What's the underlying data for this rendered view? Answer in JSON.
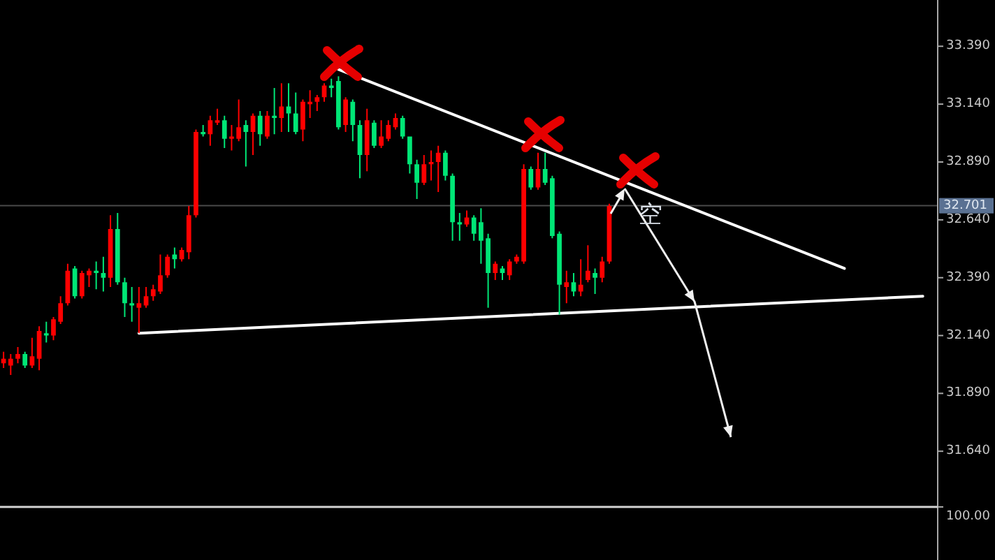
{
  "chart_data": [
    {
      "type": "candlestick",
      "categories": [
        null,
        null,
        null,
        null,
        null,
        null,
        null,
        null,
        null,
        null,
        null,
        null,
        null,
        null,
        null,
        null,
        null,
        null,
        null,
        null,
        null,
        null,
        null,
        null,
        null,
        null,
        null,
        null,
        null,
        null,
        null,
        null,
        null,
        null,
        null,
        null,
        null,
        null,
        null,
        null,
        null,
        null,
        null,
        null,
        null,
        null,
        null,
        null,
        null,
        null,
        null,
        null,
        null,
        null,
        null,
        null,
        null,
        null,
        null,
        null,
        null,
        null,
        null,
        null,
        null,
        null,
        null,
        null,
        null,
        null,
        null,
        null,
        null,
        null,
        null,
        null,
        null,
        null,
        null,
        null,
        null,
        null,
        null,
        null,
        null,
        null,
        null,
        null,
        null,
        null,
        null,
        null,
        null,
        null,
        null,
        null,
        null,
        null,
        null,
        null,
        null,
        null,
        null,
        null,
        null,
        null,
        null,
        null,
        null,
        null,
        null,
        null,
        null,
        null,
        null,
        null,
        null,
        null,
        null,
        null,
        null,
        null,
        null,
        null,
        null,
        null,
        null,
        null,
        null,
        null,
        null
      ],
      "ohlc": [
        [
          32.02,
          32.07,
          32.0,
          32.04
        ],
        [
          32.01,
          32.06,
          31.97,
          32.04
        ],
        [
          32.04,
          32.09,
          32.02,
          32.06
        ],
        [
          32.06,
          32.07,
          32.0,
          32.01
        ],
        [
          32.01,
          32.13,
          32.0,
          32.05
        ],
        [
          32.04,
          32.18,
          31.99,
          32.16
        ],
        [
          32.15,
          32.2,
          32.11,
          32.14
        ],
        [
          32.14,
          32.22,
          32.12,
          32.21
        ],
        [
          32.2,
          32.31,
          32.19,
          32.28
        ],
        [
          32.28,
          32.45,
          32.27,
          32.42
        ],
        [
          32.43,
          32.44,
          32.3,
          32.31
        ],
        [
          32.31,
          32.42,
          32.3,
          32.41
        ],
        [
          32.4,
          32.43,
          32.35,
          32.42
        ],
        [
          32.42,
          32.46,
          32.34,
          32.41
        ],
        [
          32.41,
          32.48,
          32.33,
          32.39
        ],
        [
          32.39,
          32.66,
          32.35,
          32.6
        ],
        [
          32.6,
          32.67,
          32.36,
          32.37
        ],
        [
          32.37,
          32.39,
          32.22,
          32.28
        ],
        [
          32.28,
          32.35,
          32.2,
          32.27
        ],
        [
          32.26,
          32.35,
          32.15,
          32.28
        ],
        [
          32.27,
          32.35,
          32.26,
          32.31
        ],
        [
          32.31,
          32.36,
          32.29,
          32.34
        ],
        [
          32.33,
          32.49,
          32.32,
          32.4
        ],
        [
          32.4,
          32.49,
          32.39,
          32.48
        ],
        [
          32.49,
          32.52,
          32.43,
          32.47
        ],
        [
          32.47,
          32.52,
          32.46,
          32.51
        ],
        [
          32.5,
          32.7,
          32.47,
          32.66
        ],
        [
          32.66,
          33.03,
          32.65,
          33.02
        ],
        [
          33.02,
          33.05,
          33.0,
          33.01
        ],
        [
          33.01,
          33.09,
          32.96,
          33.07
        ],
        [
          33.06,
          33.12,
          33.05,
          33.07
        ],
        [
          33.07,
          33.09,
          32.95,
          32.99
        ],
        [
          32.99,
          33.05,
          32.94,
          33.0
        ],
        [
          32.99,
          33.16,
          32.98,
          33.04
        ],
        [
          33.05,
          33.07,
          32.87,
          33.02
        ],
        [
          33.02,
          33.1,
          32.92,
          33.09
        ],
        [
          33.09,
          33.11,
          32.96,
          33.01
        ],
        [
          33.0,
          33.11,
          32.99,
          33.09
        ],
        [
          33.09,
          33.21,
          33.01,
          33.08
        ],
        [
          33.08,
          33.23,
          33.02,
          33.13
        ],
        [
          33.13,
          33.23,
          33.02,
          33.1
        ],
        [
          33.1,
          33.19,
          33.01,
          33.02
        ],
        [
          33.03,
          33.16,
          32.98,
          33.15
        ],
        [
          33.14,
          33.2,
          33.08,
          33.15
        ],
        [
          33.15,
          33.18,
          33.11,
          33.17
        ],
        [
          33.17,
          33.23,
          33.15,
          33.22
        ],
        [
          33.22,
          33.25,
          33.17,
          33.21
        ],
        [
          33.24,
          33.26,
          33.03,
          33.04
        ],
        [
          33.05,
          33.17,
          33.02,
          33.16
        ],
        [
          33.15,
          33.16,
          32.98,
          33.05
        ],
        [
          33.05,
          33.07,
          32.82,
          32.92
        ],
        [
          32.92,
          33.12,
          32.85,
          33.07
        ],
        [
          33.06,
          33.07,
          32.95,
          32.96
        ],
        [
          32.96,
          33.07,
          32.95,
          33.0
        ],
        [
          32.99,
          33.07,
          32.98,
          33.05
        ],
        [
          33.04,
          33.1,
          33.03,
          33.08
        ],
        [
          33.08,
          33.09,
          32.99,
          33.0
        ],
        [
          33.0,
          33.0,
          32.84,
          32.88
        ],
        [
          32.88,
          32.9,
          32.73,
          32.8
        ],
        [
          32.8,
          32.92,
          32.79,
          32.88
        ],
        [
          32.88,
          32.94,
          32.81,
          32.89
        ],
        [
          32.89,
          32.96,
          32.76,
          32.93
        ],
        [
          32.93,
          32.94,
          32.81,
          32.83
        ],
        [
          32.83,
          32.84,
          32.55,
          32.63
        ],
        [
          32.63,
          32.67,
          32.55,
          32.62
        ],
        [
          32.62,
          32.68,
          32.61,
          32.65
        ],
        [
          32.65,
          32.66,
          32.55,
          32.58
        ],
        [
          32.63,
          32.69,
          32.45,
          32.55
        ],
        [
          32.56,
          32.58,
          32.26,
          32.41
        ],
        [
          32.41,
          32.46,
          32.38,
          32.45
        ],
        [
          32.43,
          32.44,
          32.38,
          32.41
        ],
        [
          32.4,
          32.47,
          32.38,
          32.46
        ],
        [
          32.46,
          32.49,
          32.45,
          32.48
        ],
        [
          32.46,
          32.88,
          32.45,
          32.86
        ],
        [
          32.86,
          32.87,
          32.77,
          32.78
        ],
        [
          32.78,
          32.93,
          32.77,
          32.86
        ],
        [
          32.86,
          32.93,
          32.79,
          32.8
        ],
        [
          32.82,
          32.83,
          32.56,
          32.57
        ],
        [
          32.58,
          32.59,
          32.23,
          32.36
        ],
        [
          32.35,
          32.42,
          32.28,
          32.37
        ],
        [
          32.37,
          32.41,
          32.31,
          32.33
        ],
        [
          32.33,
          32.47,
          32.31,
          32.36
        ],
        [
          32.38,
          32.53,
          32.37,
          32.42
        ],
        [
          32.41,
          32.43,
          32.32,
          32.39
        ],
        [
          32.39,
          32.48,
          32.37,
          32.46
        ],
        [
          32.46,
          32.71,
          32.45,
          32.7
        ],
        null,
        null,
        null,
        null,
        null,
        null,
        null,
        null,
        null,
        null,
        null,
        null,
        null,
        null,
        null,
        null,
        null,
        null,
        null,
        null,
        null,
        null,
        null,
        null,
        null,
        null,
        null,
        null,
        null,
        null,
        null,
        null,
        null,
        null,
        null,
        null,
        null,
        null,
        null,
        null,
        null,
        null,
        null,
        null,
        null
      ],
      "colors": [
        "#ff0000",
        "#ff0000",
        "#ff0000",
        "#00e676",
        "#ff0000",
        "#ff0000",
        "#00e676",
        "#ff0000",
        "#ff0000",
        "#ff0000",
        "#00e676",
        "#ff0000",
        "#ff0000",
        "#00e676",
        "#00e676",
        "#ff0000",
        "#00e676",
        "#00e676",
        "#00e676",
        "#ff0000",
        "#ff0000",
        "#ff0000",
        "#ff0000",
        "#ff0000",
        "#00e676",
        "#ff0000",
        "#ff0000",
        "#ff0000",
        "#00e676",
        "#ff0000",
        "#ff0000",
        "#00e676",
        "#ff0000",
        "#ff0000",
        "#00e676",
        "#ff0000",
        "#00e676",
        "#ff0000",
        "#00e676",
        "#ff0000",
        "#00e676",
        "#00e676",
        "#ff0000",
        "#ff0000",
        "#ff0000",
        "#ff0000",
        "#00e676",
        "#00e676",
        "#ff0000",
        "#00e676",
        "#00e676",
        "#ff0000",
        "#00e676",
        "#ff0000",
        "#ff0000",
        "#ff0000",
        "#00e676",
        "#00e676",
        "#00e676",
        "#ff0000",
        "#ff0000",
        "#ff0000",
        "#00e676",
        "#00e676",
        "#00e676",
        "#ff0000",
        "#00e676",
        "#00e676",
        "#00e676",
        "#ff0000",
        "#00e676",
        "#ff0000",
        "#ff0000",
        "#ff0000",
        "#00e676",
        "#ff0000",
        "#00e676",
        "#00e676",
        "#00e676",
        "#ff0000",
        "#00e676",
        "#ff0000",
        "#ff0000",
        "#00e676",
        "#ff0000",
        "#ff0000",
        null,
        null,
        null,
        null,
        null,
        null,
        null,
        null,
        null,
        null,
        null,
        null,
        null,
        null,
        null,
        null,
        null,
        null,
        null,
        null,
        null,
        null,
        null,
        null,
        null,
        null,
        null,
        null,
        null,
        null,
        null,
        null,
        null,
        null,
        null,
        null,
        null,
        null,
        null,
        null,
        null,
        null,
        null,
        null,
        null
      ],
      "ylim": [
        31.17,
        33.59
      ],
      "yticks": [
        {
          "value": 33.39,
          "label": "33.390"
        },
        {
          "value": 33.14,
          "label": "33.140"
        },
        {
          "value": 32.89,
          "label": "32.890"
        },
        {
          "value": 32.64,
          "label": "32.640"
        },
        {
          "value": 32.39,
          "label": "32.390"
        },
        {
          "value": 32.14,
          "label": "32.140"
        },
        {
          "value": 31.89,
          "label": "31.890"
        },
        {
          "value": 31.64,
          "label": "31.640"
        }
      ],
      "tick_labels": "y",
      "series": [
        {
          "type": "line",
          "color": "#ffffff",
          "values": [
            null,
            null,
            null,
            null,
            null,
            null,
            null,
            null,
            null,
            null,
            null,
            null,
            null,
            null,
            null,
            null,
            null,
            null,
            null,
            null,
            null,
            null,
            null,
            null,
            null,
            null,
            null,
            null,
            null,
            null,
            null,
            null,
            null,
            null,
            null,
            null,
            null,
            null,
            null,
            null,
            null,
            null,
            null,
            null,
            null,
            null,
            null,
            33.29,
            null,
            null,
            null,
            null,
            null,
            null,
            null,
            null,
            null,
            null,
            null,
            null,
            null,
            null,
            null,
            null,
            null,
            null,
            null,
            null,
            null,
            null,
            null,
            null,
            null,
            null,
            null,
            null,
            null,
            null,
            null,
            null,
            null,
            null,
            null,
            null,
            null,
            null,
            null,
            null,
            null,
            null,
            null,
            null,
            null,
            null,
            null,
            null,
            null,
            null,
            null,
            null,
            null,
            null,
            null,
            null,
            null,
            null,
            null,
            null,
            null,
            null,
            null,
            null,
            null,
            null,
            null,
            null,
            null,
            null,
            32.43,
            null,
            null,
            null,
            null,
            null,
            null,
            null,
            null,
            null,
            null,
            null,
            null
          ]
        },
        {
          "type": "line",
          "color": "#ffffff",
          "values": [
            null,
            null,
            null,
            null,
            null,
            null,
            null,
            null,
            null,
            null,
            null,
            null,
            null,
            null,
            null,
            null,
            null,
            null,
            null,
            32.15,
            null,
            null,
            null,
            null,
            null,
            null,
            null,
            null,
            null,
            null,
            null,
            null,
            null,
            null,
            null,
            null,
            null,
            null,
            null,
            null,
            null,
            null,
            null,
            null,
            null,
            null,
            null,
            null,
            null,
            null,
            null,
            null,
            null,
            null,
            null,
            null,
            null,
            null,
            null,
            null,
            null,
            null,
            null,
            null,
            null,
            null,
            null,
            null,
            null,
            null,
            null,
            null,
            null,
            null,
            null,
            null,
            null,
            null,
            null,
            null,
            null,
            null,
            null,
            null,
            null,
            null,
            null,
            null,
            null,
            null,
            null,
            null,
            null,
            null,
            null,
            null,
            null,
            null,
            null,
            null,
            null,
            null,
            null,
            null,
            null,
            null,
            null,
            null,
            null,
            null,
            null,
            null,
            null,
            null,
            null,
            null,
            null,
            null,
            null,
            null,
            null,
            null,
            null,
            null,
            null,
            null,
            null,
            null,
            null,
            32.31,
            null
          ]
        }
      ],
      "ref_lines": [
        {
          "axis": "y",
          "value": 32.701,
          "label": "32.701",
          "color": "#4a4a4a"
        }
      ],
      "annotations": [
        "空"
      ]
    },
    {
      "type": "other",
      "annotations": [
        "100.00"
      ]
    }
  ]
}
